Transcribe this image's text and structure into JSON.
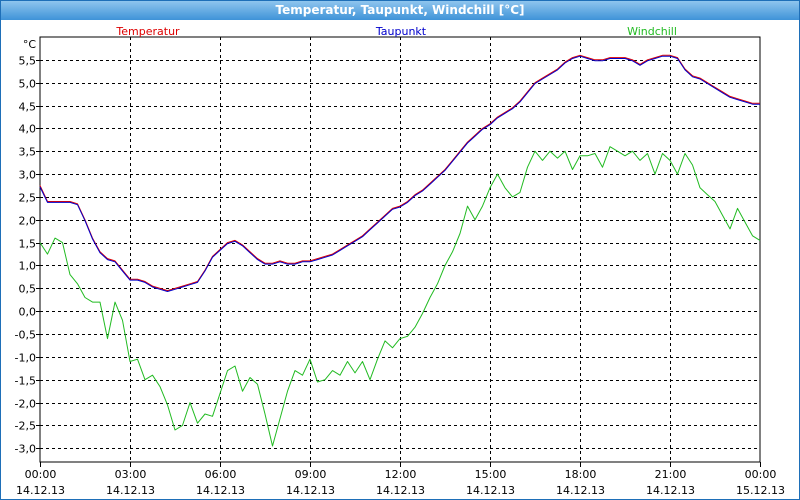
{
  "window": {
    "title": "Temperatur, Taupunkt, Windchill [°C]"
  },
  "chart_data": {
    "type": "line",
    "title": "Temperatur, Taupunkt, Windchill [°C]",
    "ylabel": "°C",
    "xlabel": "",
    "ylim": [
      -3.3,
      6.0
    ],
    "xlim": [
      0,
      24
    ],
    "grid": true,
    "legend_position": "top",
    "y_ticks": [
      "5,5",
      "5,0",
      "4,5",
      "4,0",
      "3,5",
      "3,0",
      "2,5",
      "2,0",
      "1,5",
      "1,0",
      "0,5",
      "0,0",
      "-0,5",
      "-1,0",
      "-1,5",
      "-2,0",
      "-2,5",
      "-3,0"
    ],
    "y_tick_values": [
      5.5,
      5.0,
      4.5,
      4.0,
      3.5,
      3.0,
      2.5,
      2.0,
      1.5,
      1.0,
      0.5,
      0.0,
      -0.5,
      -1.0,
      -1.5,
      -2.0,
      -2.5,
      -3.0
    ],
    "x_ticks": [
      {
        "time": "00:00",
        "date": "14.12.13",
        "value": 0
      },
      {
        "time": "03:00",
        "date": "14.12.13",
        "value": 3
      },
      {
        "time": "06:00",
        "date": "14.12.13",
        "value": 6
      },
      {
        "time": "09:00",
        "date": "14.12.13",
        "value": 9
      },
      {
        "time": "12:00",
        "date": "14.12.13",
        "value": 12
      },
      {
        "time": "15:00",
        "date": "14.12.13",
        "value": 15
      },
      {
        "time": "18:00",
        "date": "14.12.13",
        "value": 18
      },
      {
        "time": "21:00",
        "date": "14.12.13",
        "value": 21
      },
      {
        "time": "00:00",
        "date": "15.12.13",
        "value": 24
      }
    ],
    "series": [
      {
        "name": "Temperatur",
        "color": "#dd0000",
        "x": [
          0,
          0.25,
          0.5,
          0.75,
          1,
          1.25,
          1.5,
          1.75,
          2,
          2.25,
          2.5,
          2.75,
          3,
          3.25,
          3.5,
          3.75,
          4,
          4.25,
          4.5,
          4.75,
          5,
          5.25,
          5.5,
          5.75,
          6,
          6.25,
          6.5,
          6.75,
          7,
          7.25,
          7.5,
          7.75,
          8,
          8.25,
          8.5,
          8.75,
          9,
          9.25,
          9.5,
          9.75,
          10,
          10.25,
          10.5,
          10.75,
          11,
          11.25,
          11.5,
          11.75,
          12,
          12.25,
          12.5,
          12.75,
          13,
          13.25,
          13.5,
          13.75,
          14,
          14.25,
          14.5,
          14.75,
          15,
          15.25,
          15.5,
          15.75,
          16,
          16.25,
          16.5,
          16.75,
          17,
          17.25,
          17.5,
          17.75,
          18,
          18.25,
          18.5,
          18.75,
          19,
          19.25,
          19.5,
          19.75,
          20,
          20.25,
          20.5,
          20.75,
          21,
          21.25,
          21.5,
          21.75,
          22,
          22.25,
          22.5,
          22.75,
          23,
          23.25,
          23.5,
          23.75,
          24
        ],
        "values": [
          2.75,
          2.4,
          2.4,
          2.4,
          2.4,
          2.35,
          2.0,
          1.6,
          1.3,
          1.15,
          1.1,
          0.9,
          0.7,
          0.7,
          0.65,
          0.55,
          0.5,
          0.45,
          0.5,
          0.55,
          0.6,
          0.65,
          0.9,
          1.2,
          1.35,
          1.5,
          1.55,
          1.45,
          1.3,
          1.15,
          1.05,
          1.05,
          1.1,
          1.05,
          1.05,
          1.1,
          1.1,
          1.15,
          1.2,
          1.25,
          1.35,
          1.45,
          1.55,
          1.65,
          1.8,
          1.95,
          2.1,
          2.25,
          2.3,
          2.4,
          2.55,
          2.65,
          2.8,
          2.95,
          3.1,
          3.3,
          3.5,
          3.7,
          3.85,
          4.0,
          4.1,
          4.25,
          4.35,
          4.45,
          4.6,
          4.8,
          5.0,
          5.1,
          5.2,
          5.3,
          5.45,
          5.55,
          5.6,
          5.55,
          5.5,
          5.5,
          5.55,
          5.55,
          5.55,
          5.5,
          5.4,
          5.5,
          5.55,
          5.6,
          5.6,
          5.55,
          5.3,
          5.15,
          5.1,
          5.0,
          4.9,
          4.8,
          4.7,
          4.65,
          4.6,
          4.55,
          4.55
        ]
      },
      {
        "name": "Taupunkt",
        "color": "#0000cc",
        "x": [
          0,
          0.25,
          0.5,
          0.75,
          1,
          1.25,
          1.5,
          1.75,
          2,
          2.25,
          2.5,
          2.75,
          3,
          3.25,
          3.5,
          3.75,
          4,
          4.25,
          4.5,
          4.75,
          5,
          5.25,
          5.5,
          5.75,
          6,
          6.25,
          6.5,
          6.75,
          7,
          7.25,
          7.5,
          7.75,
          8,
          8.25,
          8.5,
          8.75,
          9,
          9.25,
          9.5,
          9.75,
          10,
          10.25,
          10.5,
          10.75,
          11,
          11.25,
          11.5,
          11.75,
          12,
          12.25,
          12.5,
          12.75,
          13,
          13.25,
          13.5,
          13.75,
          14,
          14.25,
          14.5,
          14.75,
          15,
          15.25,
          15.5,
          15.75,
          16,
          16.25,
          16.5,
          16.75,
          17,
          17.25,
          17.5,
          17.75,
          18,
          18.25,
          18.5,
          18.75,
          19,
          19.25,
          19.5,
          19.75,
          20,
          20.25,
          20.5,
          20.75,
          21,
          21.25,
          21.5,
          21.75,
          22,
          22.25,
          22.5,
          22.75,
          23,
          23.25,
          23.5,
          23.75,
          24
        ],
        "values": [
          2.72,
          2.38,
          2.38,
          2.38,
          2.38,
          2.33,
          1.98,
          1.58,
          1.28,
          1.13,
          1.08,
          0.88,
          0.68,
          0.68,
          0.63,
          0.53,
          0.48,
          0.43,
          0.48,
          0.53,
          0.58,
          0.63,
          0.88,
          1.18,
          1.33,
          1.48,
          1.53,
          1.43,
          1.28,
          1.13,
          1.03,
          1.03,
          1.08,
          1.03,
          1.03,
          1.08,
          1.08,
          1.13,
          1.18,
          1.23,
          1.33,
          1.43,
          1.53,
          1.63,
          1.78,
          1.93,
          2.08,
          2.23,
          2.28,
          2.38,
          2.53,
          2.63,
          2.78,
          2.93,
          3.08,
          3.28,
          3.48,
          3.68,
          3.83,
          3.98,
          4.08,
          4.23,
          4.33,
          4.43,
          4.58,
          4.78,
          4.98,
          5.08,
          5.18,
          5.28,
          5.43,
          5.53,
          5.58,
          5.53,
          5.48,
          5.48,
          5.53,
          5.53,
          5.53,
          5.48,
          5.38,
          5.48,
          5.53,
          5.58,
          5.58,
          5.53,
          5.28,
          5.13,
          5.08,
          4.98,
          4.88,
          4.78,
          4.68,
          4.63,
          4.58,
          4.53,
          4.53
        ]
      },
      {
        "name": "Windchill",
        "color": "#22bb22",
        "x": [
          0,
          0.25,
          0.5,
          0.75,
          1,
          1.25,
          1.5,
          1.75,
          2,
          2.25,
          2.5,
          2.75,
          3,
          3.25,
          3.5,
          3.75,
          4,
          4.25,
          4.5,
          4.75,
          5,
          5.25,
          5.5,
          5.75,
          6,
          6.25,
          6.5,
          6.75,
          7,
          7.25,
          7.5,
          7.75,
          8,
          8.25,
          8.5,
          8.75,
          9,
          9.25,
          9.5,
          9.75,
          10,
          10.25,
          10.5,
          10.75,
          11,
          11.25,
          11.5,
          11.75,
          12,
          12.25,
          12.5,
          12.75,
          13,
          13.25,
          13.5,
          13.75,
          14,
          14.25,
          14.5,
          14.75,
          15,
          15.25,
          15.5,
          15.75,
          16,
          16.25,
          16.5,
          16.75,
          17,
          17.25,
          17.5,
          17.75,
          18,
          18.25,
          18.5,
          18.75,
          19,
          19.25,
          19.5,
          19.75,
          20,
          20.25,
          20.5,
          20.75,
          21,
          21.25,
          21.5,
          21.75,
          22,
          22.25,
          22.5,
          22.75,
          23,
          23.25,
          23.5,
          23.75,
          24
        ],
        "values": [
          1.5,
          1.25,
          1.6,
          1.5,
          0.8,
          0.6,
          0.3,
          0.2,
          0.2,
          -0.6,
          0.2,
          -0.2,
          -1.1,
          -1.05,
          -1.5,
          -1.4,
          -1.65,
          -2.05,
          -2.6,
          -2.5,
          -2.0,
          -2.45,
          -2.25,
          -2.3,
          -1.8,
          -1.3,
          -1.2,
          -1.75,
          -1.45,
          -1.6,
          -2.25,
          -2.95,
          -2.35,
          -1.75,
          -1.3,
          -1.4,
          -1.05,
          -1.55,
          -1.5,
          -1.3,
          -1.4,
          -1.1,
          -1.35,
          -1.1,
          -1.5,
          -1.05,
          -0.65,
          -0.8,
          -0.6,
          -0.55,
          -0.35,
          -0.05,
          0.3,
          0.6,
          1.0,
          1.3,
          1.7,
          2.3,
          2.0,
          2.3,
          2.7,
          3.0,
          2.7,
          2.5,
          2.6,
          3.15,
          3.5,
          3.3,
          3.5,
          3.35,
          3.5,
          3.1,
          3.4,
          3.4,
          3.45,
          3.15,
          3.6,
          3.5,
          3.4,
          3.5,
          3.3,
          3.45,
          3.0,
          3.45,
          3.3,
          3.0,
          3.45,
          3.2,
          2.7,
          2.55,
          2.4,
          2.1,
          1.8,
          2.25,
          1.95,
          1.65,
          1.55
        ]
      }
    ]
  }
}
